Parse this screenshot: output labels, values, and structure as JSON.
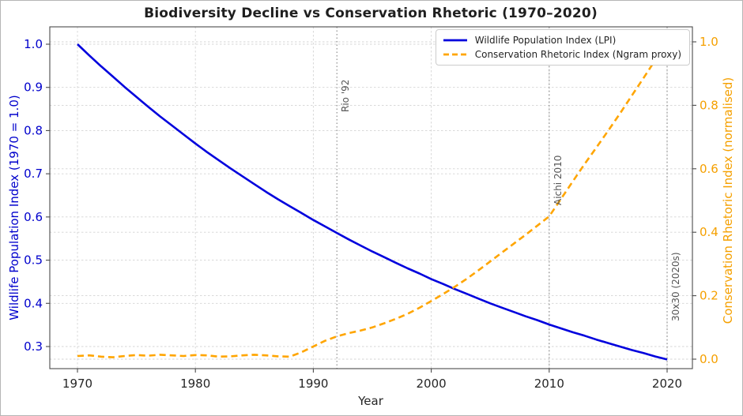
{
  "chart_data": {
    "type": "line",
    "title": "Biodiversity Decline vs Conservation Rhetoric (1970–2020)",
    "xlabel": "Year",
    "ylabel_left": "Wildlife Population Index (1970 = 1.0)",
    "ylabel_right": "Conservation Rhetoric Index (normalised)",
    "x_tick_labels": [
      "1970",
      "1980",
      "1990",
      "2000",
      "2010",
      "2020"
    ],
    "x_ticks": [
      1970,
      1980,
      1990,
      2000,
      2010,
      2020
    ],
    "left_tick_labels": [
      "1.0",
      "0.9",
      "0.8",
      "0.7",
      "0.6",
      "0.5",
      "0.4",
      "0.3"
    ],
    "left_ticks": [
      1.0,
      0.9,
      0.8,
      0.7,
      0.6,
      0.5,
      0.4,
      0.3
    ],
    "right_tick_labels": [
      "1.0",
      "0.8",
      "0.6",
      "0.4",
      "0.2",
      "0.0"
    ],
    "right_ticks": [
      1.0,
      0.8,
      0.6,
      0.4,
      0.2,
      0.0
    ],
    "xlim": [
      1967.6,
      2022.2
    ],
    "ylim_left": [
      0.249,
      1.04
    ],
    "ylim_right": [
      -0.048,
      1.047
    ],
    "grid": true,
    "legend_position": "upper right",
    "years": [
      1970,
      1971,
      1972,
      1973,
      1974,
      1975,
      1976,
      1977,
      1978,
      1979,
      1980,
      1981,
      1982,
      1983,
      1984,
      1985,
      1986,
      1987,
      1988,
      1989,
      1990,
      1991,
      1992,
      1993,
      1994,
      1995,
      1996,
      1997,
      1998,
      1999,
      2000,
      2001,
      2002,
      2003,
      2004,
      2005,
      2006,
      2007,
      2008,
      2009,
      2010,
      2011,
      2012,
      2013,
      2014,
      2015,
      2016,
      2017,
      2018,
      2019,
      2020
    ],
    "series": [
      {
        "name": "Wildlife Population Index (LPI)",
        "axis": "left",
        "style": "solid",
        "color": "#0000dd",
        "values": [
          1.0,
          0.974,
          0.949,
          0.925,
          0.901,
          0.878,
          0.855,
          0.833,
          0.812,
          0.791,
          0.77,
          0.75,
          0.731,
          0.712,
          0.694,
          0.676,
          0.658,
          0.641,
          0.625,
          0.609,
          0.593,
          0.578,
          0.563,
          0.548,
          0.534,
          0.52,
          0.507,
          0.494,
          0.481,
          0.469,
          0.456,
          0.445,
          0.433,
          0.422,
          0.411,
          0.4,
          0.39,
          0.38,
          0.37,
          0.361,
          0.351,
          0.342,
          0.333,
          0.325,
          0.316,
          0.308,
          0.3,
          0.292,
          0.285,
          0.277,
          0.27
        ]
      },
      {
        "name": "Conservation Rhetoric Index (Ngram proxy)",
        "axis": "right",
        "style": "dashed",
        "color": "#FFA500",
        "values": [
          0.01,
          0.012,
          0.008,
          0.006,
          0.01,
          0.013,
          0.011,
          0.014,
          0.012,
          0.01,
          0.013,
          0.012,
          0.008,
          0.009,
          0.012,
          0.014,
          0.012,
          0.009,
          0.008,
          0.022,
          0.04,
          0.058,
          0.072,
          0.082,
          0.09,
          0.1,
          0.113,
          0.127,
          0.143,
          0.162,
          0.183,
          0.205,
          0.228,
          0.253,
          0.28,
          0.308,
          0.336,
          0.364,
          0.392,
          0.421,
          0.45,
          0.505,
          0.56,
          0.615,
          0.667,
          0.72,
          0.774,
          0.83,
          0.886,
          0.943,
          1.0
        ]
      }
    ],
    "annotations": [
      {
        "label": "Rio '92",
        "year": 1992
      },
      {
        "label": "Aichi 2010",
        "year": 2010
      },
      {
        "label": "30x30 (2020s)",
        "year": 2020
      }
    ],
    "colors": {
      "lpi_line": "#0000dd",
      "rhetoric_line": "#FFA500",
      "left_axis_text": "#0000cc",
      "right_axis_text": "#f5a000",
      "grid_line": "#d4d4d4",
      "annotation_line": "#8f8f8f",
      "annotation_text": "#555555",
      "spine": "#4a4a4a",
      "tick_text": "#262626"
    }
  }
}
